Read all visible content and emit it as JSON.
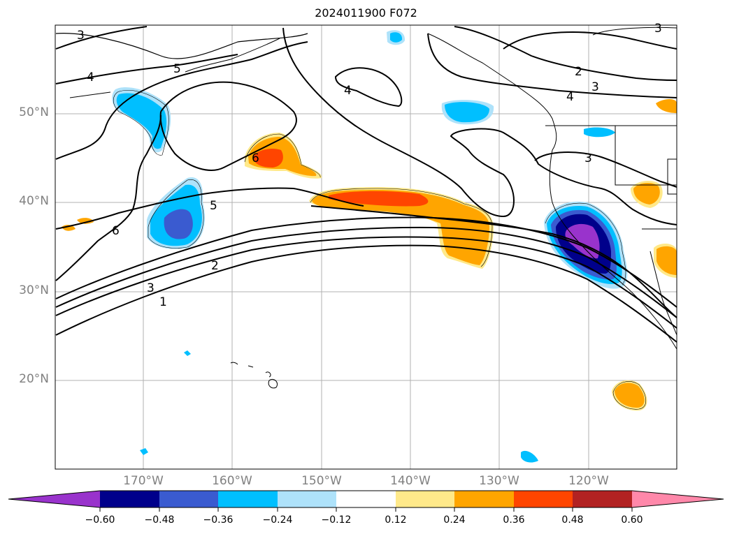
{
  "title": "2024011900 F072",
  "map": {
    "lat_labels": [
      "50°N",
      "40°N",
      "30°N",
      "20°N"
    ],
    "lon_labels": [
      "170°W",
      "160°W",
      "150°W",
      "140°W",
      "130°W",
      "120°W"
    ],
    "contour_labels": [
      "3",
      "4",
      "5",
      "4",
      "6",
      "5",
      "6",
      "2",
      "3",
      "1",
      "3",
      "2",
      "3",
      "4",
      "3"
    ]
  },
  "colorbar": {
    "ticks": [
      "−0.60",
      "−0.48",
      "−0.36",
      "−0.24",
      "−0.12",
      "0.12",
      "0.24",
      "0.36",
      "0.48",
      "0.60"
    ],
    "colors": [
      "#9933cc",
      "#00008b",
      "#3a5bd0",
      "#00bfff",
      "#aee2fa",
      "#ffffff",
      "#ffe98a",
      "#ffa500",
      "#ff4500",
      "#b22222",
      "#ff88aa"
    ]
  }
}
